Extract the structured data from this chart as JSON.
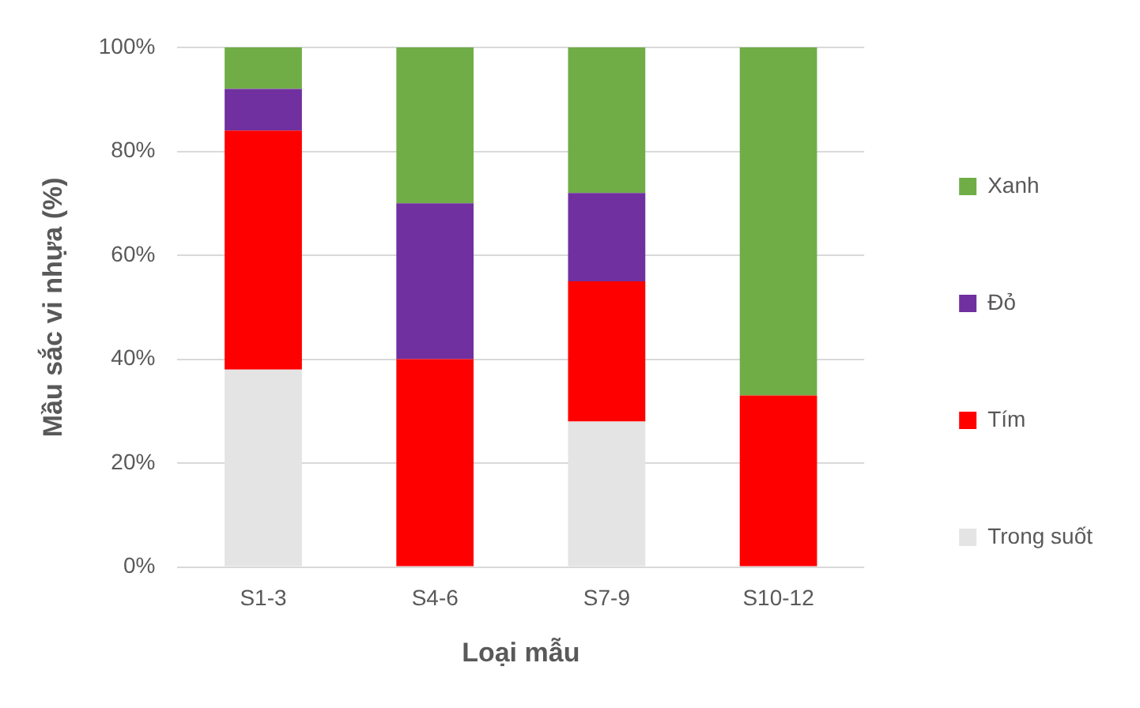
{
  "chart_data": {
    "type": "bar",
    "stacked": true,
    "xlabel": "Loại mẫu",
    "ylabel": "Mầu sắc vi nhựa (%)",
    "categories": [
      "S1-3",
      "S4-6",
      "S7-9",
      "S10-12"
    ],
    "series": [
      {
        "name": "Trong suốt",
        "color": "#e4e4e4",
        "values": [
          38,
          0,
          28,
          0
        ]
      },
      {
        "name": "Tím",
        "color": "#ff0000",
        "values": [
          46,
          40,
          27,
          33
        ]
      },
      {
        "name": "Đỏ",
        "color": "#7030a0",
        "values": [
          8,
          30,
          17,
          0
        ]
      },
      {
        "name": "Xanh",
        "color": "#70ad47",
        "values": [
          8,
          30,
          28,
          67
        ]
      }
    ],
    "ylim": [
      0,
      100
    ],
    "yticks": [
      {
        "value": 0,
        "label": "0%"
      },
      {
        "value": 20,
        "label": "20%"
      },
      {
        "value": 40,
        "label": "40%"
      },
      {
        "value": 60,
        "label": "60%"
      },
      {
        "value": 80,
        "label": "80%"
      },
      {
        "value": 100,
        "label": "100%"
      }
    ],
    "grid": "y",
    "legend": "right"
  }
}
